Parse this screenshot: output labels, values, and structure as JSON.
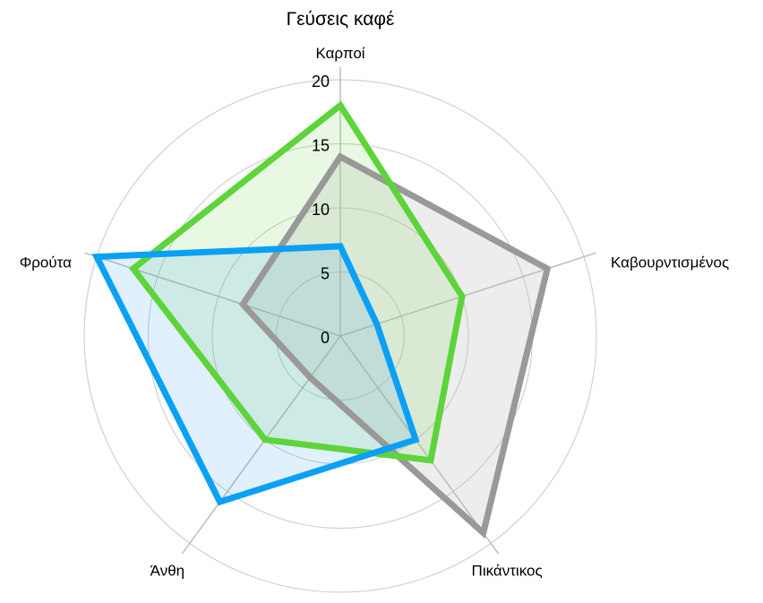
{
  "chart_data": {
    "type": "radar",
    "title": "Γεύσεις καφέ",
    "categories": [
      "Καρποί",
      "Καβουρντισμένος",
      "Πικάντικος",
      "Άνθη",
      "Φρούτα"
    ],
    "rlim": [
      0,
      20
    ],
    "ticks": [
      "0",
      "5",
      "10",
      "15",
      "20"
    ],
    "tick_values": [
      0,
      5,
      10,
      15,
      20
    ],
    "grid": true,
    "legend": "none",
    "series": [
      {
        "values": [
          14,
          17,
          19,
          4,
          8
        ],
        "color": "#999999",
        "fill": "rgba(190,190,190,0.28)"
      },
      {
        "values": [
          18,
          10,
          12,
          10,
          17
        ],
        "color": "#5dd43a",
        "fill": "rgba(120,215,90,0.17)"
      },
      {
        "values": [
          7,
          3,
          10,
          16,
          20
        ],
        "color": "#0aa0f5",
        "fill": "rgba(40,150,240,0.14)"
      }
    ]
  }
}
